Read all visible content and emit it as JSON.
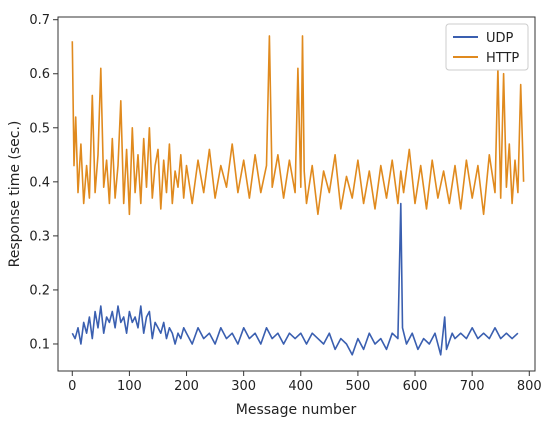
{
  "chart_data": {
    "type": "line",
    "title": "",
    "xlabel": "Message number",
    "ylabel": "Response time (sec.)",
    "xlim": [
      -25,
      810
    ],
    "ylim": [
      0.05,
      0.705
    ],
    "x_ticks": [
      0,
      100,
      200,
      300,
      400,
      500,
      600,
      700,
      800
    ],
    "y_ticks": [
      0.1,
      0.2,
      0.3,
      0.4,
      0.5,
      0.6,
      0.7
    ],
    "grid": false,
    "legend": "top-right",
    "series": [
      {
        "name": "UDP",
        "color": "#3a5fb0",
        "points": [
          [
            0,
            0.12
          ],
          [
            5,
            0.11
          ],
          [
            10,
            0.13
          ],
          [
            15,
            0.1
          ],
          [
            20,
            0.14
          ],
          [
            25,
            0.12
          ],
          [
            30,
            0.15
          ],
          [
            35,
            0.11
          ],
          [
            40,
            0.16
          ],
          [
            45,
            0.13
          ],
          [
            50,
            0.17
          ],
          [
            55,
            0.12
          ],
          [
            60,
            0.15
          ],
          [
            65,
            0.14
          ],
          [
            70,
            0.16
          ],
          [
            75,
            0.13
          ],
          [
            80,
            0.17
          ],
          [
            85,
            0.14
          ],
          [
            90,
            0.15
          ],
          [
            95,
            0.12
          ],
          [
            100,
            0.16
          ],
          [
            105,
            0.14
          ],
          [
            110,
            0.15
          ],
          [
            115,
            0.13
          ],
          [
            120,
            0.17
          ],
          [
            125,
            0.12
          ],
          [
            130,
            0.15
          ],
          [
            135,
            0.16
          ],
          [
            140,
            0.11
          ],
          [
            145,
            0.14
          ],
          [
            150,
            0.13
          ],
          [
            155,
            0.12
          ],
          [
            160,
            0.14
          ],
          [
            165,
            0.11
          ],
          [
            170,
            0.13
          ],
          [
            175,
            0.12
          ],
          [
            180,
            0.1
          ],
          [
            185,
            0.12
          ],
          [
            190,
            0.11
          ],
          [
            195,
            0.13
          ],
          [
            200,
            0.12
          ],
          [
            210,
            0.1
          ],
          [
            220,
            0.13
          ],
          [
            230,
            0.11
          ],
          [
            240,
            0.12
          ],
          [
            250,
            0.1
          ],
          [
            260,
            0.13
          ],
          [
            270,
            0.11
          ],
          [
            280,
            0.12
          ],
          [
            290,
            0.1
          ],
          [
            300,
            0.13
          ],
          [
            310,
            0.11
          ],
          [
            320,
            0.12
          ],
          [
            330,
            0.1
          ],
          [
            340,
            0.13
          ],
          [
            350,
            0.11
          ],
          [
            360,
            0.12
          ],
          [
            370,
            0.1
          ],
          [
            380,
            0.12
          ],
          [
            390,
            0.11
          ],
          [
            400,
            0.12
          ],
          [
            410,
            0.1
          ],
          [
            420,
            0.12
          ],
          [
            430,
            0.11
          ],
          [
            440,
            0.1
          ],
          [
            450,
            0.12
          ],
          [
            460,
            0.09
          ],
          [
            470,
            0.11
          ],
          [
            480,
            0.1
          ],
          [
            490,
            0.08
          ],
          [
            500,
            0.11
          ],
          [
            510,
            0.09
          ],
          [
            520,
            0.12
          ],
          [
            530,
            0.1
          ],
          [
            540,
            0.11
          ],
          [
            550,
            0.09
          ],
          [
            560,
            0.12
          ],
          [
            570,
            0.11
          ],
          [
            575,
            0.36
          ],
          [
            578,
            0.13
          ],
          [
            585,
            0.1
          ],
          [
            595,
            0.12
          ],
          [
            605,
            0.09
          ],
          [
            615,
            0.11
          ],
          [
            625,
            0.1
          ],
          [
            635,
            0.12
          ],
          [
            645,
            0.08
          ],
          [
            652,
            0.15
          ],
          [
            655,
            0.09
          ],
          [
            665,
            0.12
          ],
          [
            670,
            0.11
          ],
          [
            680,
            0.12
          ],
          [
            690,
            0.11
          ],
          [
            700,
            0.13
          ],
          [
            710,
            0.11
          ],
          [
            720,
            0.12
          ],
          [
            730,
            0.11
          ],
          [
            740,
            0.13
          ],
          [
            750,
            0.11
          ],
          [
            760,
            0.12
          ],
          [
            770,
            0.11
          ],
          [
            780,
            0.12
          ]
        ]
      },
      {
        "name": "HTTP",
        "color": "#e08a1e",
        "points": [
          [
            0,
            0.66
          ],
          [
            3,
            0.43
          ],
          [
            6,
            0.52
          ],
          [
            10,
            0.38
          ],
          [
            15,
            0.47
          ],
          [
            20,
            0.36
          ],
          [
            25,
            0.43
          ],
          [
            30,
            0.37
          ],
          [
            35,
            0.56
          ],
          [
            40,
            0.38
          ],
          [
            45,
            0.45
          ],
          [
            50,
            0.61
          ],
          [
            55,
            0.39
          ],
          [
            60,
            0.44
          ],
          [
            65,
            0.36
          ],
          [
            70,
            0.48
          ],
          [
            75,
            0.37
          ],
          [
            80,
            0.43
          ],
          [
            85,
            0.55
          ],
          [
            90,
            0.36
          ],
          [
            95,
            0.46
          ],
          [
            100,
            0.34
          ],
          [
            105,
            0.5
          ],
          [
            110,
            0.38
          ],
          [
            115,
            0.45
          ],
          [
            120,
            0.36
          ],
          [
            125,
            0.48
          ],
          [
            130,
            0.39
          ],
          [
            135,
            0.5
          ],
          [
            140,
            0.37
          ],
          [
            145,
            0.43
          ],
          [
            150,
            0.46
          ],
          [
            155,
            0.35
          ],
          [
            160,
            0.44
          ],
          [
            165,
            0.38
          ],
          [
            170,
            0.47
          ],
          [
            175,
            0.36
          ],
          [
            180,
            0.42
          ],
          [
            185,
            0.39
          ],
          [
            190,
            0.45
          ],
          [
            195,
            0.37
          ],
          [
            200,
            0.43
          ],
          [
            210,
            0.36
          ],
          [
            220,
            0.44
          ],
          [
            230,
            0.38
          ],
          [
            240,
            0.46
          ],
          [
            250,
            0.37
          ],
          [
            260,
            0.43
          ],
          [
            270,
            0.39
          ],
          [
            280,
            0.47
          ],
          [
            290,
            0.38
          ],
          [
            300,
            0.44
          ],
          [
            310,
            0.37
          ],
          [
            320,
            0.45
          ],
          [
            330,
            0.38
          ],
          [
            340,
            0.43
          ],
          [
            345,
            0.67
          ],
          [
            350,
            0.39
          ],
          [
            360,
            0.45
          ],
          [
            370,
            0.37
          ],
          [
            380,
            0.44
          ],
          [
            390,
            0.38
          ],
          [
            395,
            0.61
          ],
          [
            400,
            0.39
          ],
          [
            403,
            0.67
          ],
          [
            406,
            0.42
          ],
          [
            410,
            0.36
          ],
          [
            420,
            0.43
          ],
          [
            430,
            0.34
          ],
          [
            440,
            0.42
          ],
          [
            450,
            0.38
          ],
          [
            460,
            0.45
          ],
          [
            470,
            0.35
          ],
          [
            480,
            0.41
          ],
          [
            490,
            0.37
          ],
          [
            500,
            0.44
          ],
          [
            510,
            0.36
          ],
          [
            520,
            0.42
          ],
          [
            530,
            0.35
          ],
          [
            540,
            0.43
          ],
          [
            550,
            0.37
          ],
          [
            560,
            0.44
          ],
          [
            570,
            0.36
          ],
          [
            575,
            0.42
          ],
          [
            580,
            0.38
          ],
          [
            590,
            0.46
          ],
          [
            600,
            0.36
          ],
          [
            610,
            0.43
          ],
          [
            620,
            0.35
          ],
          [
            630,
            0.44
          ],
          [
            640,
            0.37
          ],
          [
            650,
            0.42
          ],
          [
            660,
            0.36
          ],
          [
            670,
            0.43
          ],
          [
            680,
            0.35
          ],
          [
            690,
            0.44
          ],
          [
            700,
            0.37
          ],
          [
            710,
            0.43
          ],
          [
            720,
            0.34
          ],
          [
            730,
            0.45
          ],
          [
            740,
            0.38
          ],
          [
            745,
            0.61
          ],
          [
            750,
            0.37
          ],
          [
            755,
            0.6
          ],
          [
            760,
            0.39
          ],
          [
            765,
            0.47
          ],
          [
            770,
            0.36
          ],
          [
            775,
            0.44
          ],
          [
            780,
            0.38
          ],
          [
            785,
            0.58
          ],
          [
            790,
            0.4
          ]
        ]
      }
    ]
  }
}
